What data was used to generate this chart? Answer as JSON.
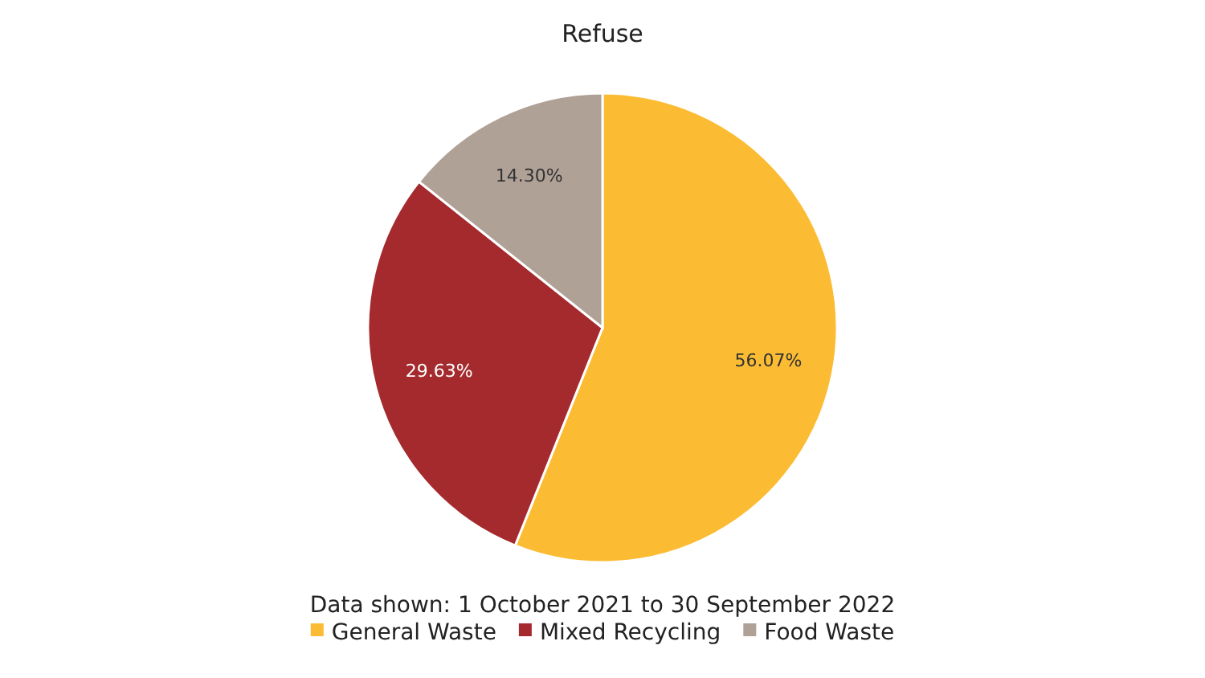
{
  "chart_data": {
    "type": "pie",
    "title": "Refuse",
    "categories": [
      "General Waste",
      "Mixed Recycling",
      "Food Waste"
    ],
    "values": [
      56.07,
      29.63,
      14.3
    ],
    "colors": [
      "#fbbc33",
      "#a52a2e",
      "#b0a197"
    ],
    "value_labels": [
      "56.07%",
      "29.63%",
      "14.30%"
    ],
    "annotations": [
      "Data shown: 1 October 2021 to 30 September 2022"
    ],
    "legend": "bottom"
  }
}
